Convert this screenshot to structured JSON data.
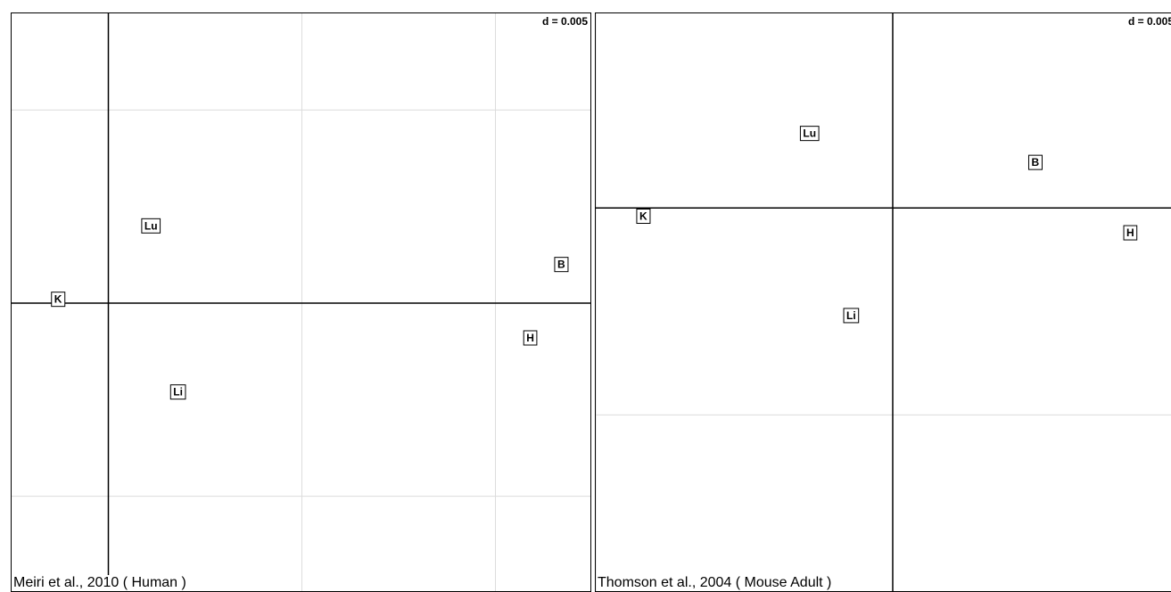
{
  "chart_data": [
    {
      "type": "scatter",
      "scale_label": "d = 0.005",
      "caption": "Meiri et al., 2010 ( Human )",
      "grid": true,
      "xlim": [
        -0.0025,
        0.0125
      ],
      "ylim": [
        -0.0075,
        0.0075
      ],
      "points": [
        {
          "label": "K",
          "x": -0.0013,
          "y": 0.0001
        },
        {
          "label": "Lu",
          "x": 0.0011,
          "y": 0.002
        },
        {
          "label": "Li",
          "x": 0.0018,
          "y": -0.0023
        },
        {
          "label": "B",
          "x": 0.0117,
          "y": 0.001
        },
        {
          "label": "H",
          "x": 0.0109,
          "y": -0.0009
        }
      ]
    },
    {
      "type": "scatter",
      "scale_label": "d = 0.005",
      "caption": "Thomson et al., 2004 ( Mouse Adult )",
      "grid": true,
      "xlim": [
        -0.005,
        0.0047
      ],
      "ylim": [
        -0.0093,
        0.0047
      ],
      "points": [
        {
          "label": "K",
          "x": -0.0042,
          "y": -0.0002
        },
        {
          "label": "Lu",
          "x": -0.0014,
          "y": 0.0018
        },
        {
          "label": "Li",
          "x": -0.0007,
          "y": -0.0026
        },
        {
          "label": "B",
          "x": 0.0024,
          "y": 0.0011
        },
        {
          "label": "H",
          "x": 0.004,
          "y": -0.0006
        }
      ]
    }
  ]
}
